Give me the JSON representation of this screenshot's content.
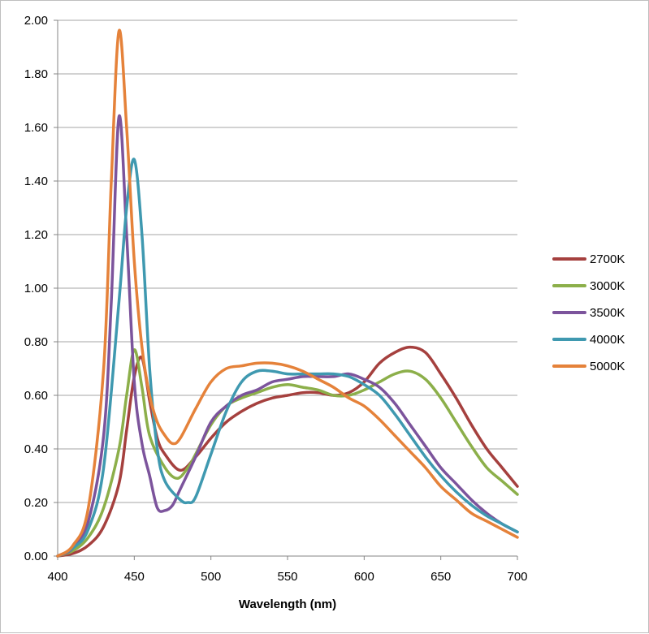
{
  "chart_data": {
    "type": "line",
    "title": "",
    "xlabel": "Wavelength (nm)",
    "ylabel": "",
    "xlim": [
      400,
      700
    ],
    "ylim": [
      0,
      2.0
    ],
    "x_ticks": [
      "400",
      "450",
      "500",
      "550",
      "600",
      "650",
      "700"
    ],
    "y_ticks": [
      "0.00",
      "0.20",
      "0.40",
      "0.60",
      "0.80",
      "1.00",
      "1.20",
      "1.40",
      "1.60",
      "1.80",
      "2.00"
    ],
    "grid": "horizontal",
    "legend_position": "right",
    "colors": {
      "gridline": "#a6a6a6",
      "axis": "#868686"
    },
    "series": [
      {
        "name": "2700K",
        "color": "#a5403e",
        "points": [
          [
            400,
            0.0
          ],
          [
            410,
            0.01
          ],
          [
            420,
            0.04
          ],
          [
            430,
            0.11
          ],
          [
            440,
            0.27
          ],
          [
            445,
            0.47
          ],
          [
            450,
            0.67
          ],
          [
            455,
            0.74
          ],
          [
            460,
            0.58
          ],
          [
            465,
            0.44
          ],
          [
            470,
            0.38
          ],
          [
            480,
            0.32
          ],
          [
            490,
            0.37
          ],
          [
            500,
            0.44
          ],
          [
            510,
            0.5
          ],
          [
            520,
            0.54
          ],
          [
            530,
            0.57
          ],
          [
            540,
            0.59
          ],
          [
            550,
            0.6
          ],
          [
            560,
            0.61
          ],
          [
            570,
            0.61
          ],
          [
            580,
            0.6
          ],
          [
            590,
            0.61
          ],
          [
            600,
            0.65
          ],
          [
            610,
            0.72
          ],
          [
            620,
            0.76
          ],
          [
            630,
            0.78
          ],
          [
            640,
            0.76
          ],
          [
            650,
            0.68
          ],
          [
            660,
            0.59
          ],
          [
            670,
            0.49
          ],
          [
            680,
            0.4
          ],
          [
            690,
            0.33
          ],
          [
            700,
            0.26
          ]
        ]
      },
      {
        "name": "3000K",
        "color": "#8caf4a",
        "points": [
          [
            400,
            0.0
          ],
          [
            410,
            0.02
          ],
          [
            420,
            0.07
          ],
          [
            430,
            0.18
          ],
          [
            440,
            0.4
          ],
          [
            445,
            0.6
          ],
          [
            450,
            0.77
          ],
          [
            455,
            0.63
          ],
          [
            460,
            0.45
          ],
          [
            470,
            0.33
          ],
          [
            478,
            0.29
          ],
          [
            485,
            0.33
          ],
          [
            490,
            0.38
          ],
          [
            500,
            0.49
          ],
          [
            510,
            0.56
          ],
          [
            520,
            0.59
          ],
          [
            530,
            0.61
          ],
          [
            540,
            0.63
          ],
          [
            550,
            0.64
          ],
          [
            560,
            0.63
          ],
          [
            570,
            0.62
          ],
          [
            580,
            0.6
          ],
          [
            590,
            0.6
          ],
          [
            600,
            0.62
          ],
          [
            610,
            0.65
          ],
          [
            620,
            0.68
          ],
          [
            630,
            0.69
          ],
          [
            640,
            0.66
          ],
          [
            650,
            0.59
          ],
          [
            660,
            0.5
          ],
          [
            670,
            0.41
          ],
          [
            680,
            0.33
          ],
          [
            690,
            0.28
          ],
          [
            700,
            0.23
          ]
        ]
      },
      {
        "name": "3500K",
        "color": "#7c549c",
        "points": [
          [
            400,
            0.0
          ],
          [
            410,
            0.03
          ],
          [
            420,
            0.13
          ],
          [
            430,
            0.45
          ],
          [
            435,
            0.95
          ],
          [
            440,
            1.64
          ],
          [
            445,
            1.2
          ],
          [
            450,
            0.65
          ],
          [
            455,
            0.42
          ],
          [
            460,
            0.3
          ],
          [
            465,
            0.18
          ],
          [
            470,
            0.17
          ],
          [
            475,
            0.19
          ],
          [
            480,
            0.25
          ],
          [
            490,
            0.37
          ],
          [
            500,
            0.5
          ],
          [
            510,
            0.56
          ],
          [
            520,
            0.6
          ],
          [
            530,
            0.62
          ],
          [
            540,
            0.65
          ],
          [
            550,
            0.66
          ],
          [
            560,
            0.67
          ],
          [
            570,
            0.67
          ],
          [
            580,
            0.67
          ],
          [
            590,
            0.68
          ],
          [
            600,
            0.66
          ],
          [
            610,
            0.63
          ],
          [
            620,
            0.57
          ],
          [
            630,
            0.49
          ],
          [
            640,
            0.41
          ],
          [
            650,
            0.33
          ],
          [
            660,
            0.27
          ],
          [
            670,
            0.21
          ],
          [
            680,
            0.16
          ],
          [
            690,
            0.12
          ],
          [
            700,
            0.09
          ]
        ]
      },
      {
        "name": "4000K",
        "color": "#3f99b0",
        "points": [
          [
            400,
            0.0
          ],
          [
            410,
            0.03
          ],
          [
            420,
            0.1
          ],
          [
            430,
            0.33
          ],
          [
            440,
            0.95
          ],
          [
            445,
            1.3
          ],
          [
            450,
            1.48
          ],
          [
            455,
            1.2
          ],
          [
            460,
            0.7
          ],
          [
            465,
            0.4
          ],
          [
            470,
            0.28
          ],
          [
            480,
            0.21
          ],
          [
            485,
            0.2
          ],
          [
            490,
            0.22
          ],
          [
            500,
            0.38
          ],
          [
            510,
            0.54
          ],
          [
            520,
            0.65
          ],
          [
            530,
            0.69
          ],
          [
            540,
            0.69
          ],
          [
            550,
            0.68
          ],
          [
            560,
            0.68
          ],
          [
            570,
            0.68
          ],
          [
            580,
            0.68
          ],
          [
            590,
            0.67
          ],
          [
            600,
            0.64
          ],
          [
            610,
            0.6
          ],
          [
            620,
            0.53
          ],
          [
            630,
            0.45
          ],
          [
            640,
            0.37
          ],
          [
            650,
            0.3
          ],
          [
            660,
            0.24
          ],
          [
            670,
            0.19
          ],
          [
            680,
            0.15
          ],
          [
            690,
            0.12
          ],
          [
            700,
            0.09
          ]
        ]
      },
      {
        "name": "5000K",
        "color": "#e5823a",
        "points": [
          [
            400,
            0.0
          ],
          [
            410,
            0.04
          ],
          [
            420,
            0.18
          ],
          [
            430,
            0.7
          ],
          [
            435,
            1.4
          ],
          [
            440,
            1.96
          ],
          [
            445,
            1.6
          ],
          [
            450,
            1.1
          ],
          [
            455,
            0.78
          ],
          [
            460,
            0.6
          ],
          [
            465,
            0.5
          ],
          [
            470,
            0.45
          ],
          [
            475,
            0.42
          ],
          [
            480,
            0.44
          ],
          [
            490,
            0.55
          ],
          [
            500,
            0.65
          ],
          [
            510,
            0.7
          ],
          [
            520,
            0.71
          ],
          [
            530,
            0.72
          ],
          [
            540,
            0.72
          ],
          [
            550,
            0.71
          ],
          [
            560,
            0.69
          ],
          [
            570,
            0.66
          ],
          [
            580,
            0.63
          ],
          [
            590,
            0.59
          ],
          [
            600,
            0.56
          ],
          [
            610,
            0.51
          ],
          [
            620,
            0.45
          ],
          [
            630,
            0.39
          ],
          [
            640,
            0.33
          ],
          [
            650,
            0.26
          ],
          [
            660,
            0.21
          ],
          [
            670,
            0.16
          ],
          [
            680,
            0.13
          ],
          [
            690,
            0.1
          ],
          [
            700,
            0.07
          ]
        ]
      }
    ]
  }
}
